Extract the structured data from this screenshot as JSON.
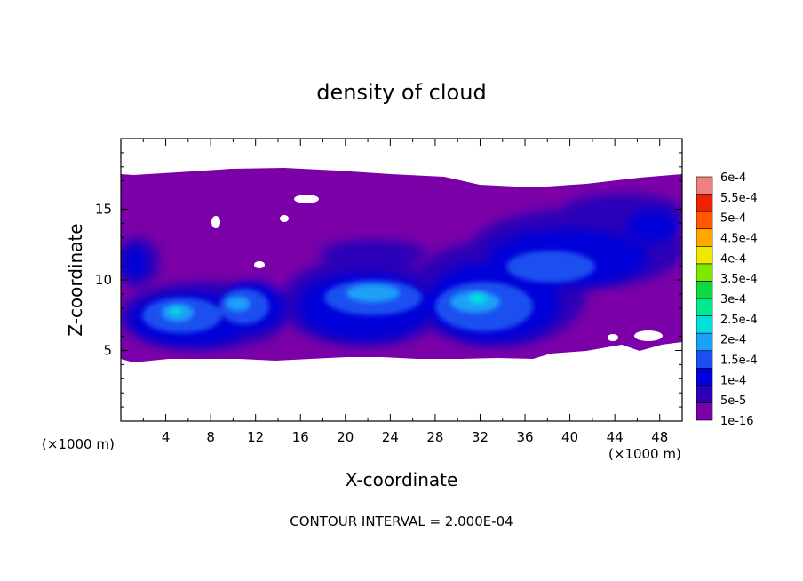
{
  "chart_data": {
    "type": "heatmap",
    "title": "density of cloud",
    "xlabel": "X-coordinate",
    "ylabel": "Z-coordinate",
    "x_multiplier": "(×1000 m)",
    "x_multiplier_right": "(×1000 m)",
    "footer": "CONTOUR INTERVAL = 2.000E-04",
    "xlim": [
      0,
      50
    ],
    "ylim": [
      0,
      20
    ],
    "x_ticks": [
      4,
      8,
      12,
      16,
      20,
      24,
      28,
      32,
      36,
      40,
      44,
      48
    ],
    "y_ticks": [
      5,
      10,
      15
    ],
    "colorbar": {
      "labels": [
        "6e-4",
        "5.5e-4",
        "5e-4",
        "4.5e-4",
        "4e-4",
        "3.5e-4",
        "3e-4",
        "2.5e-4",
        "2e-4",
        "1.5e-4",
        "1e-4",
        "5e-5",
        "1e-16"
      ],
      "colors": [
        "#7b00a8",
        "#2a00b8",
        "#0000d8",
        "#1a50f0",
        "#1aa0f8",
        "#00e0e0",
        "#00e890",
        "#10d840",
        "#80e800",
        "#f0e800",
        "#ffa800",
        "#ff5800",
        "#f02000",
        "#f08080"
      ]
    },
    "cloud_layer": {
      "x_range": [
        0,
        50
      ],
      "z_top": 17.5,
      "z_base": 4.5,
      "background_level": "1e-16"
    },
    "cores": [
      {
        "x": 6,
        "z": 7.5,
        "value": 0.00015
      },
      {
        "x": 12,
        "z": 8.5,
        "value": 0.00012
      },
      {
        "x": 23,
        "z": 9.5,
        "value": 0.00015
      },
      {
        "x": 33,
        "z": 8.5,
        "value": 0.00016
      },
      {
        "x": 38,
        "z": 11.0,
        "value": 0.0001
      },
      {
        "x": 46,
        "z": 13.0,
        "value": 8e-05
      },
      {
        "x": 1,
        "z": 11.0,
        "value": 5e-05
      }
    ]
  }
}
